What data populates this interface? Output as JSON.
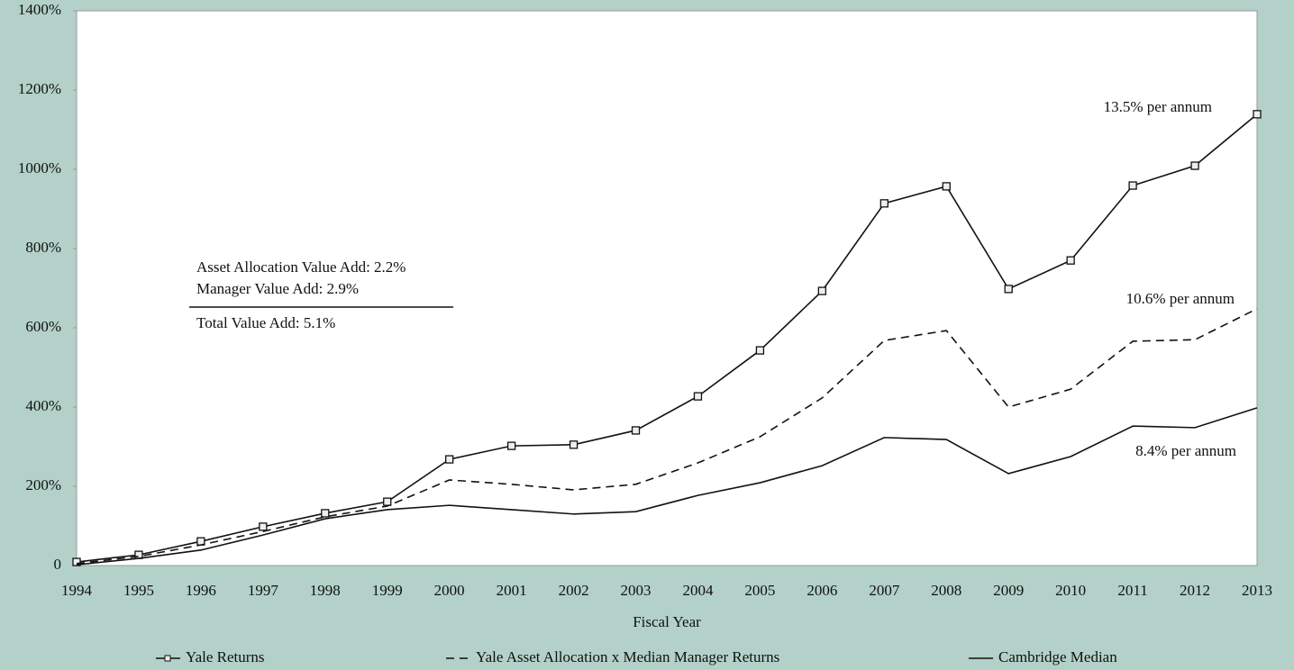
{
  "chart_data": {
    "type": "line",
    "xlabel": "Fiscal Year",
    "categories": [
      "1994",
      "1995",
      "1996",
      "1997",
      "1998",
      "1999",
      "2000",
      "2001",
      "2002",
      "2003",
      "2004",
      "2005",
      "2006",
      "2007",
      "2008",
      "2009",
      "2010",
      "2011",
      "2012",
      "2013"
    ],
    "series": [
      {
        "name": "Yale Returns",
        "color": "#111111",
        "style": "solid",
        "marker": "square",
        "values": [
          9,
          27,
          61,
          98,
          132,
          161,
          268,
          302,
          305,
          341,
          427,
          543,
          693,
          914,
          957,
          698,
          770,
          959,
          1009,
          1139
        ]
      },
      {
        "name": "Yale Asset Allocation x Median Manager Returns",
        "color": "#111111",
        "style": "dashed",
        "values": [
          5,
          23,
          52,
          86,
          123,
          150,
          216,
          205,
          191,
          205,
          259,
          325,
          423,
          568,
          593,
          400,
          445,
          566,
          570,
          648
        ]
      },
      {
        "name": "Cambridge Median",
        "color": "#111111",
        "style": "solid",
        "values": [
          2,
          18,
          39,
          77,
          118,
          141,
          152,
          141,
          130,
          136,
          177,
          209,
          252,
          323,
          318,
          232,
          275,
          352,
          348,
          398
        ]
      }
    ],
    "ylim": [
      0,
      1400
    ],
    "yticks": [
      0,
      {
        "value": 200,
        "label": "200%"
      },
      {
        "value": 400,
        "label": "400%"
      },
      {
        "value": 600,
        "label": "600%"
      },
      {
        "value": 800,
        "label": "800%"
      },
      {
        "value": 1000,
        "label": "1000%"
      },
      {
        "value": 1200,
        "label": "1200%"
      },
      {
        "value": 1400,
        "label": "1400%"
      }
    ],
    "annotations": [
      "13.5% per annum",
      "10.6% per annum",
      "8.4% per annum"
    ],
    "value_add": [
      "Asset Allocation Value Add: 2.2%",
      "Manager Value Add: 2.9%",
      "Total Value Add: 5.1%"
    ]
  }
}
